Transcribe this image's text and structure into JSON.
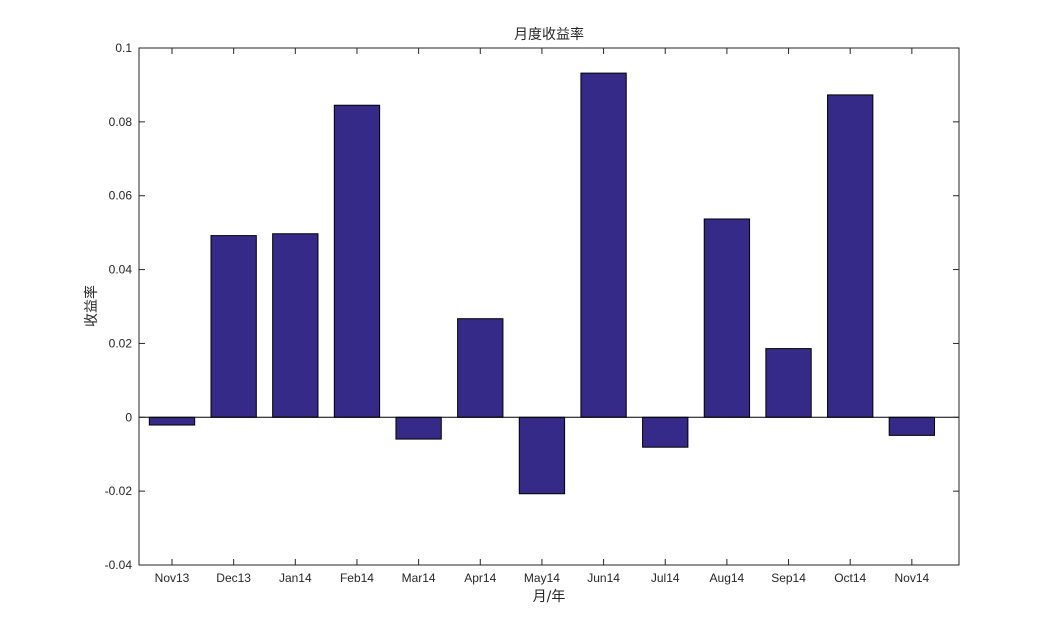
{
  "chart_data": {
    "type": "bar",
    "title": "月度收益率",
    "xlabel": "月/年",
    "ylabel": "收益率",
    "categories": [
      "Nov13",
      "Dec13",
      "Jan14",
      "Feb14",
      "Mar14",
      "Apr14",
      "May14",
      "Jun14",
      "Jul14",
      "Aug14",
      "Sep14",
      "Oct14",
      "Nov14"
    ],
    "values": [
      -0.0021,
      0.0492,
      0.0497,
      0.0845,
      -0.0059,
      0.0267,
      -0.0207,
      0.0932,
      -0.0081,
      0.0537,
      0.0186,
      0.0873,
      -0.0049
    ],
    "ylim": [
      -0.04,
      0.1
    ],
    "yticks": [
      -0.04,
      -0.02,
      0,
      0.02,
      0.04,
      0.06,
      0.08,
      0.1
    ],
    "ytick_labels": [
      "-0.04",
      "-0.02",
      "0",
      "0.02",
      "0.04",
      "0.06",
      "0.08",
      "0.1"
    ],
    "grid": false,
    "bar_color": "#352a87",
    "edge_color": "#000000"
  }
}
